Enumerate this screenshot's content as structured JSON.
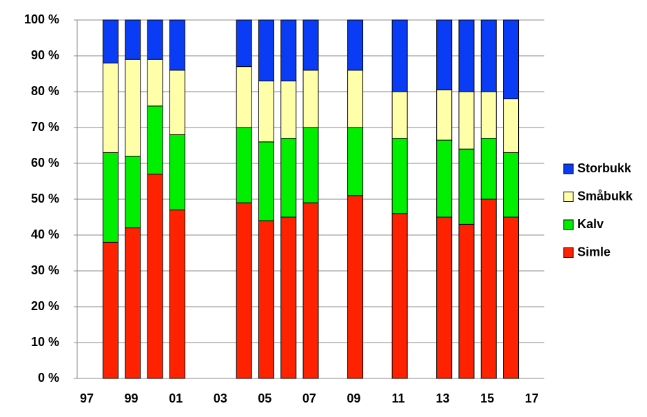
{
  "chart_data": {
    "type": "stacked_bar",
    "categories": [
      "97",
      null,
      "99",
      null,
      "01",
      null,
      "03",
      null,
      "05",
      null,
      "07",
      null,
      "09",
      null,
      "11",
      null,
      "13",
      null,
      "15",
      null,
      "17"
    ],
    "series": [
      {
        "name": "Simle",
        "color": "#ff2200",
        "values": [
          null,
          38,
          42,
          57,
          47,
          null,
          null,
          49,
          44,
          45,
          49,
          null,
          51,
          null,
          46,
          null,
          45,
          43,
          50,
          45,
          null
        ]
      },
      {
        "name": "Kalv",
        "color": "#00ee00",
        "values": [
          null,
          25,
          20,
          19,
          21,
          null,
          null,
          21,
          22,
          22,
          21,
          null,
          19,
          null,
          21,
          null,
          21.5,
          21,
          17,
          18,
          null
        ]
      },
      {
        "name": "Småbukk",
        "color": "#ffffaa",
        "values": [
          null,
          25,
          27,
          13,
          18,
          null,
          null,
          17,
          17,
          16,
          16,
          null,
          16,
          null,
          13,
          null,
          14,
          16,
          13,
          15,
          null
        ]
      },
      {
        "name": "Storbukk",
        "color": "#0a3cf5",
        "values": [
          null,
          12,
          11,
          11,
          14,
          null,
          null,
          13,
          17,
          17,
          14,
          null,
          14,
          null,
          20,
          null,
          19.5,
          20,
          20,
          22,
          null
        ]
      }
    ],
    "ylim": [
      0,
      100
    ],
    "yticks": [
      {
        "value": 0,
        "label": "0 %"
      },
      {
        "value": 10,
        "label": "10 %"
      },
      {
        "value": 20,
        "label": "20 %"
      },
      {
        "value": 30,
        "label": "30 %"
      },
      {
        "value": 40,
        "label": "40 %"
      },
      {
        "value": 50,
        "label": "50 %"
      },
      {
        "value": 60,
        "label": "60 %"
      },
      {
        "value": 70,
        "label": "70 %"
      },
      {
        "value": 80,
        "label": "80 %"
      },
      {
        "value": 90,
        "label": "90 %"
      },
      {
        "value": 100,
        "label": "100 %"
      }
    ],
    "grid": true,
    "legend": "right"
  }
}
